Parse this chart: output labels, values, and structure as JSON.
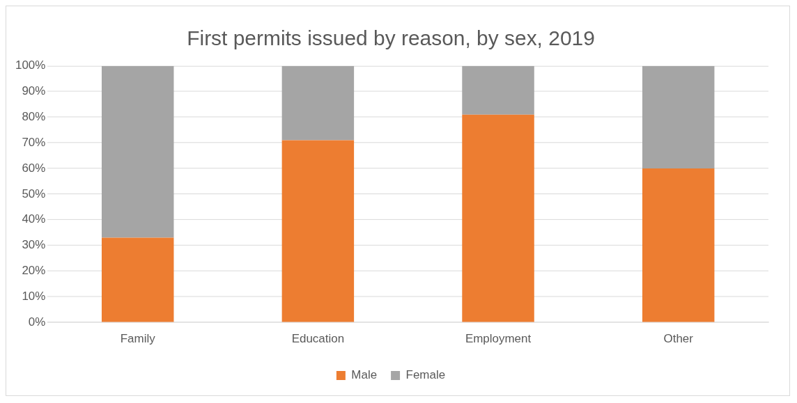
{
  "chart_data": {
    "type": "bar",
    "title": "First permits issued by reason, by sex, 2019",
    "categories": [
      "Family",
      "Education",
      "Employment",
      "Other"
    ],
    "stacked": true,
    "series": [
      {
        "name": "Male",
        "color": "#ed7d31",
        "values": [
          33,
          71,
          81,
          60
        ]
      },
      {
        "name": "Female",
        "color": "#a5a5a5",
        "values": [
          67,
          29,
          19,
          40
        ]
      }
    ],
    "ylim": [
      0,
      100
    ],
    "yticks": [
      {
        "value": 0,
        "label": "0%"
      },
      {
        "value": 10,
        "label": "10%"
      },
      {
        "value": 20,
        "label": "20%"
      },
      {
        "value": 30,
        "label": "30%"
      },
      {
        "value": 40,
        "label": "40%"
      },
      {
        "value": 50,
        "label": "50%"
      },
      {
        "value": 60,
        "label": "60%"
      },
      {
        "value": 70,
        "label": "70%"
      },
      {
        "value": 80,
        "label": "80%"
      },
      {
        "value": 90,
        "label": "90%"
      },
      {
        "value": 100,
        "label": "100%"
      }
    ],
    "grid": "y",
    "legend": "bottom"
  }
}
